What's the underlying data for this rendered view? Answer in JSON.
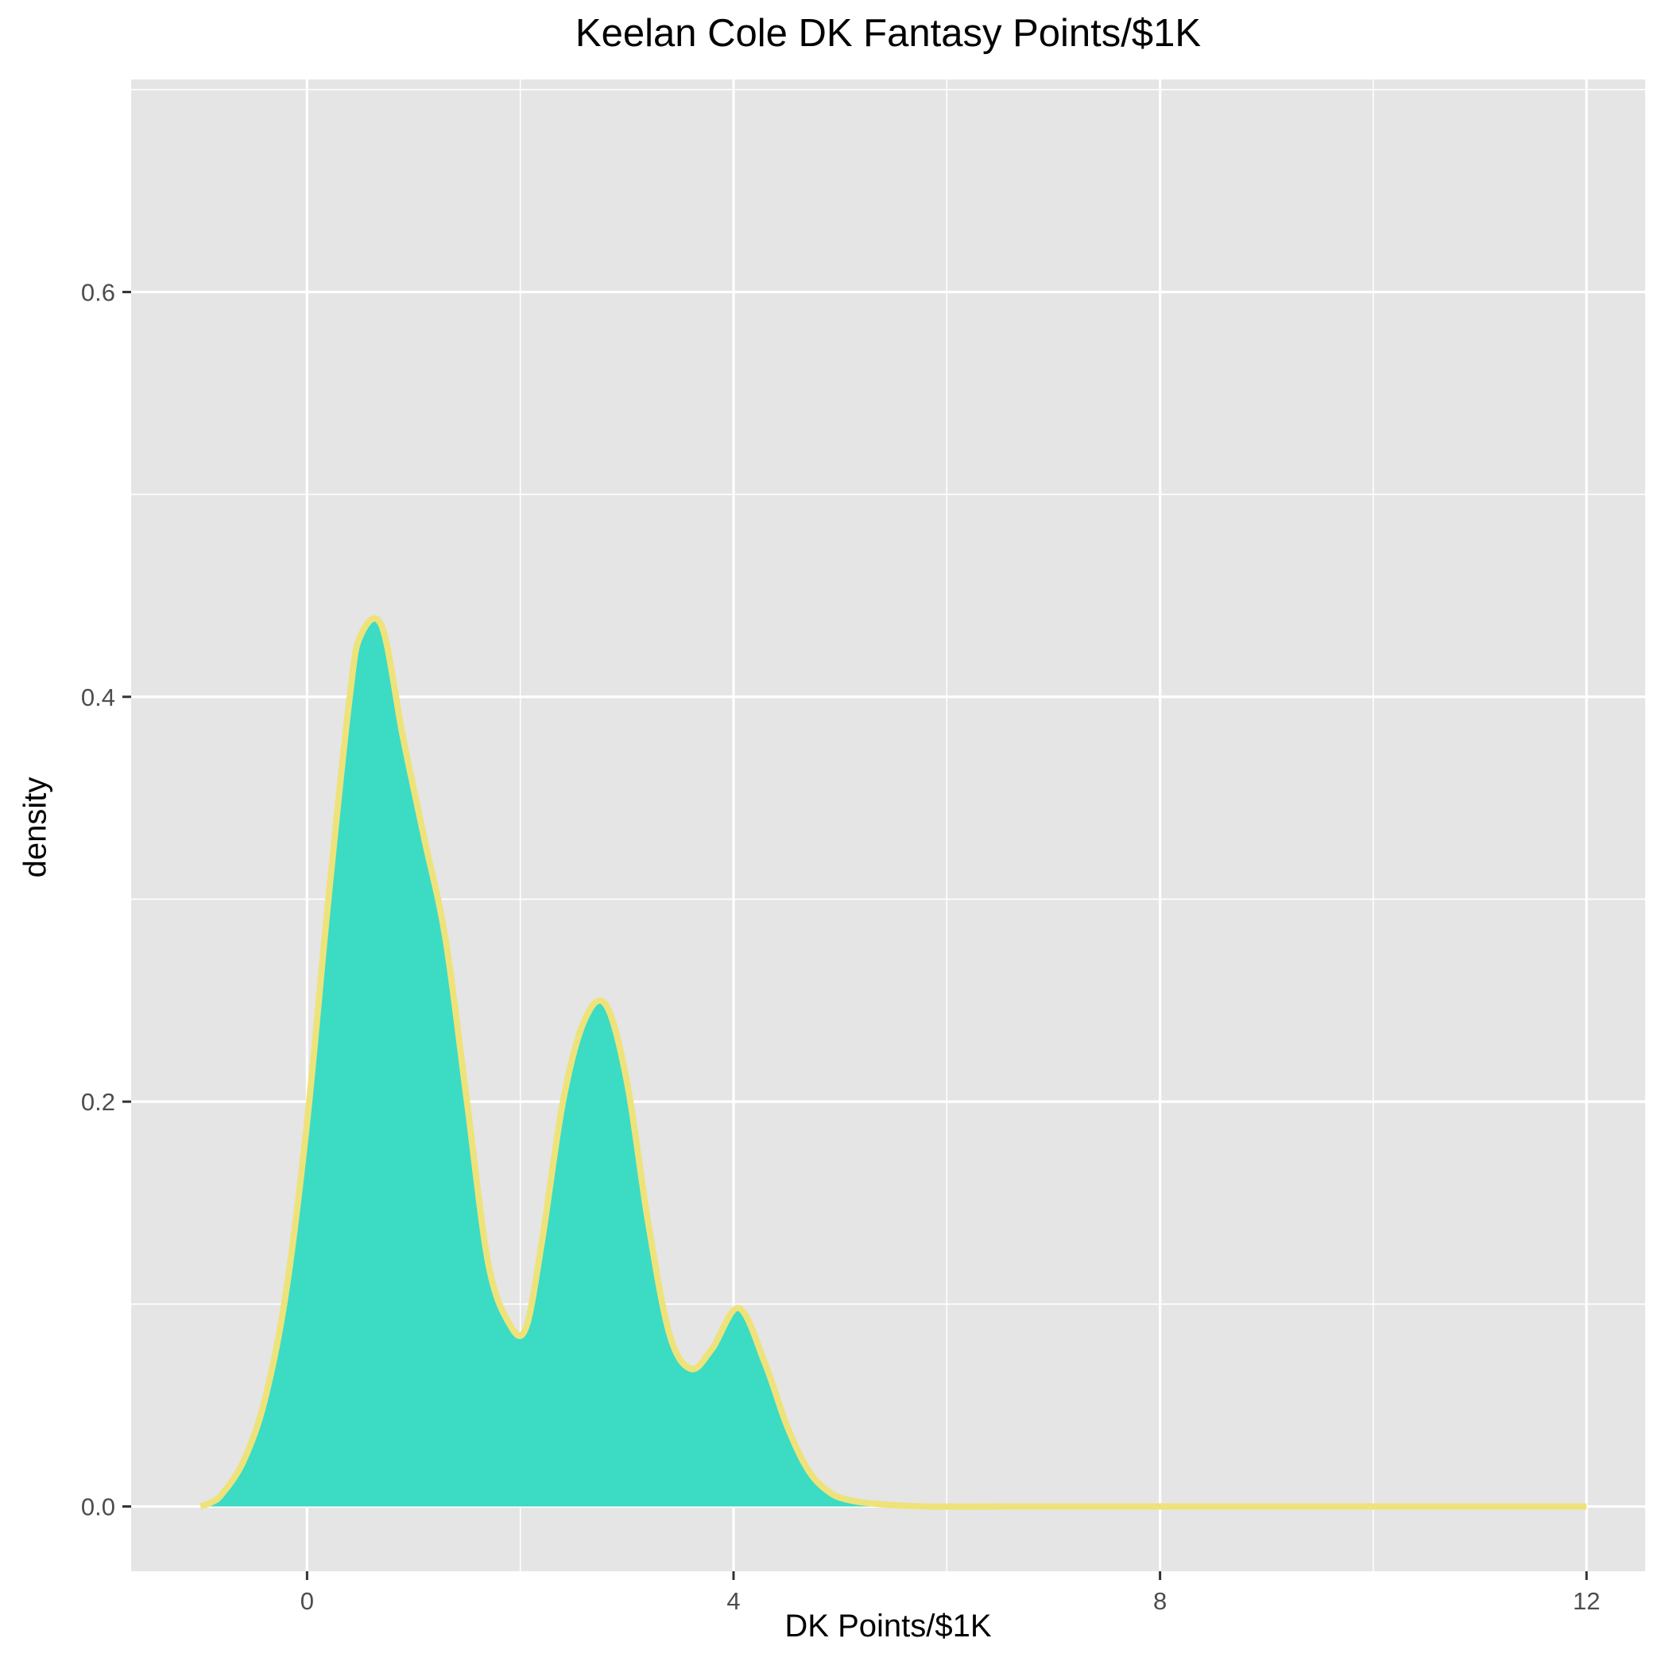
{
  "chart_data": {
    "type": "area",
    "title": "Keelan Cole DK Fantasy Points/$1K",
    "xlabel": "DK Points/$1K",
    "ylabel": "density",
    "xlim": [
      -1.65,
      12.55
    ],
    "ylim": [
      -0.032,
      0.705
    ],
    "x_ticks": [
      0,
      4,
      8,
      12
    ],
    "y_ticks": [
      0.0,
      0.2,
      0.4,
      0.6
    ],
    "x_tick_labels": [
      "0",
      "4",
      "8",
      "12"
    ],
    "y_tick_labels": [
      "0.0",
      "0.2",
      "0.4",
      "0.6"
    ],
    "grid": true,
    "series": [
      {
        "x": [
          -1.0,
          -0.9,
          -0.8,
          -0.6,
          -0.4,
          -0.2,
          0.0,
          0.2,
          0.4,
          0.5,
          0.7,
          0.9,
          1.1,
          1.3,
          1.5,
          1.7,
          1.9,
          2.05,
          2.2,
          2.4,
          2.6,
          2.8,
          3.0,
          3.2,
          3.4,
          3.6,
          3.8,
          4.05,
          4.3,
          4.5,
          4.7,
          4.9,
          5.1,
          5.4,
          5.8,
          6.5,
          8.0,
          10.0,
          12.0
        ],
        "y": [
          0.0,
          0.002,
          0.006,
          0.022,
          0.052,
          0.105,
          0.19,
          0.3,
          0.4,
          0.43,
          0.435,
          0.38,
          0.33,
          0.28,
          0.2,
          0.12,
          0.09,
          0.088,
          0.13,
          0.2,
          0.24,
          0.248,
          0.21,
          0.14,
          0.085,
          0.068,
          0.078,
          0.098,
          0.07,
          0.04,
          0.018,
          0.007,
          0.003,
          0.001,
          0.0,
          0.0,
          0.0,
          0.0,
          0.0
        ]
      }
    ],
    "fill_color": "#3CDBC4",
    "line_color": "#EEE37A",
    "panel_color": "#E5E5E5",
    "grid_color": "#FFFFFF"
  }
}
